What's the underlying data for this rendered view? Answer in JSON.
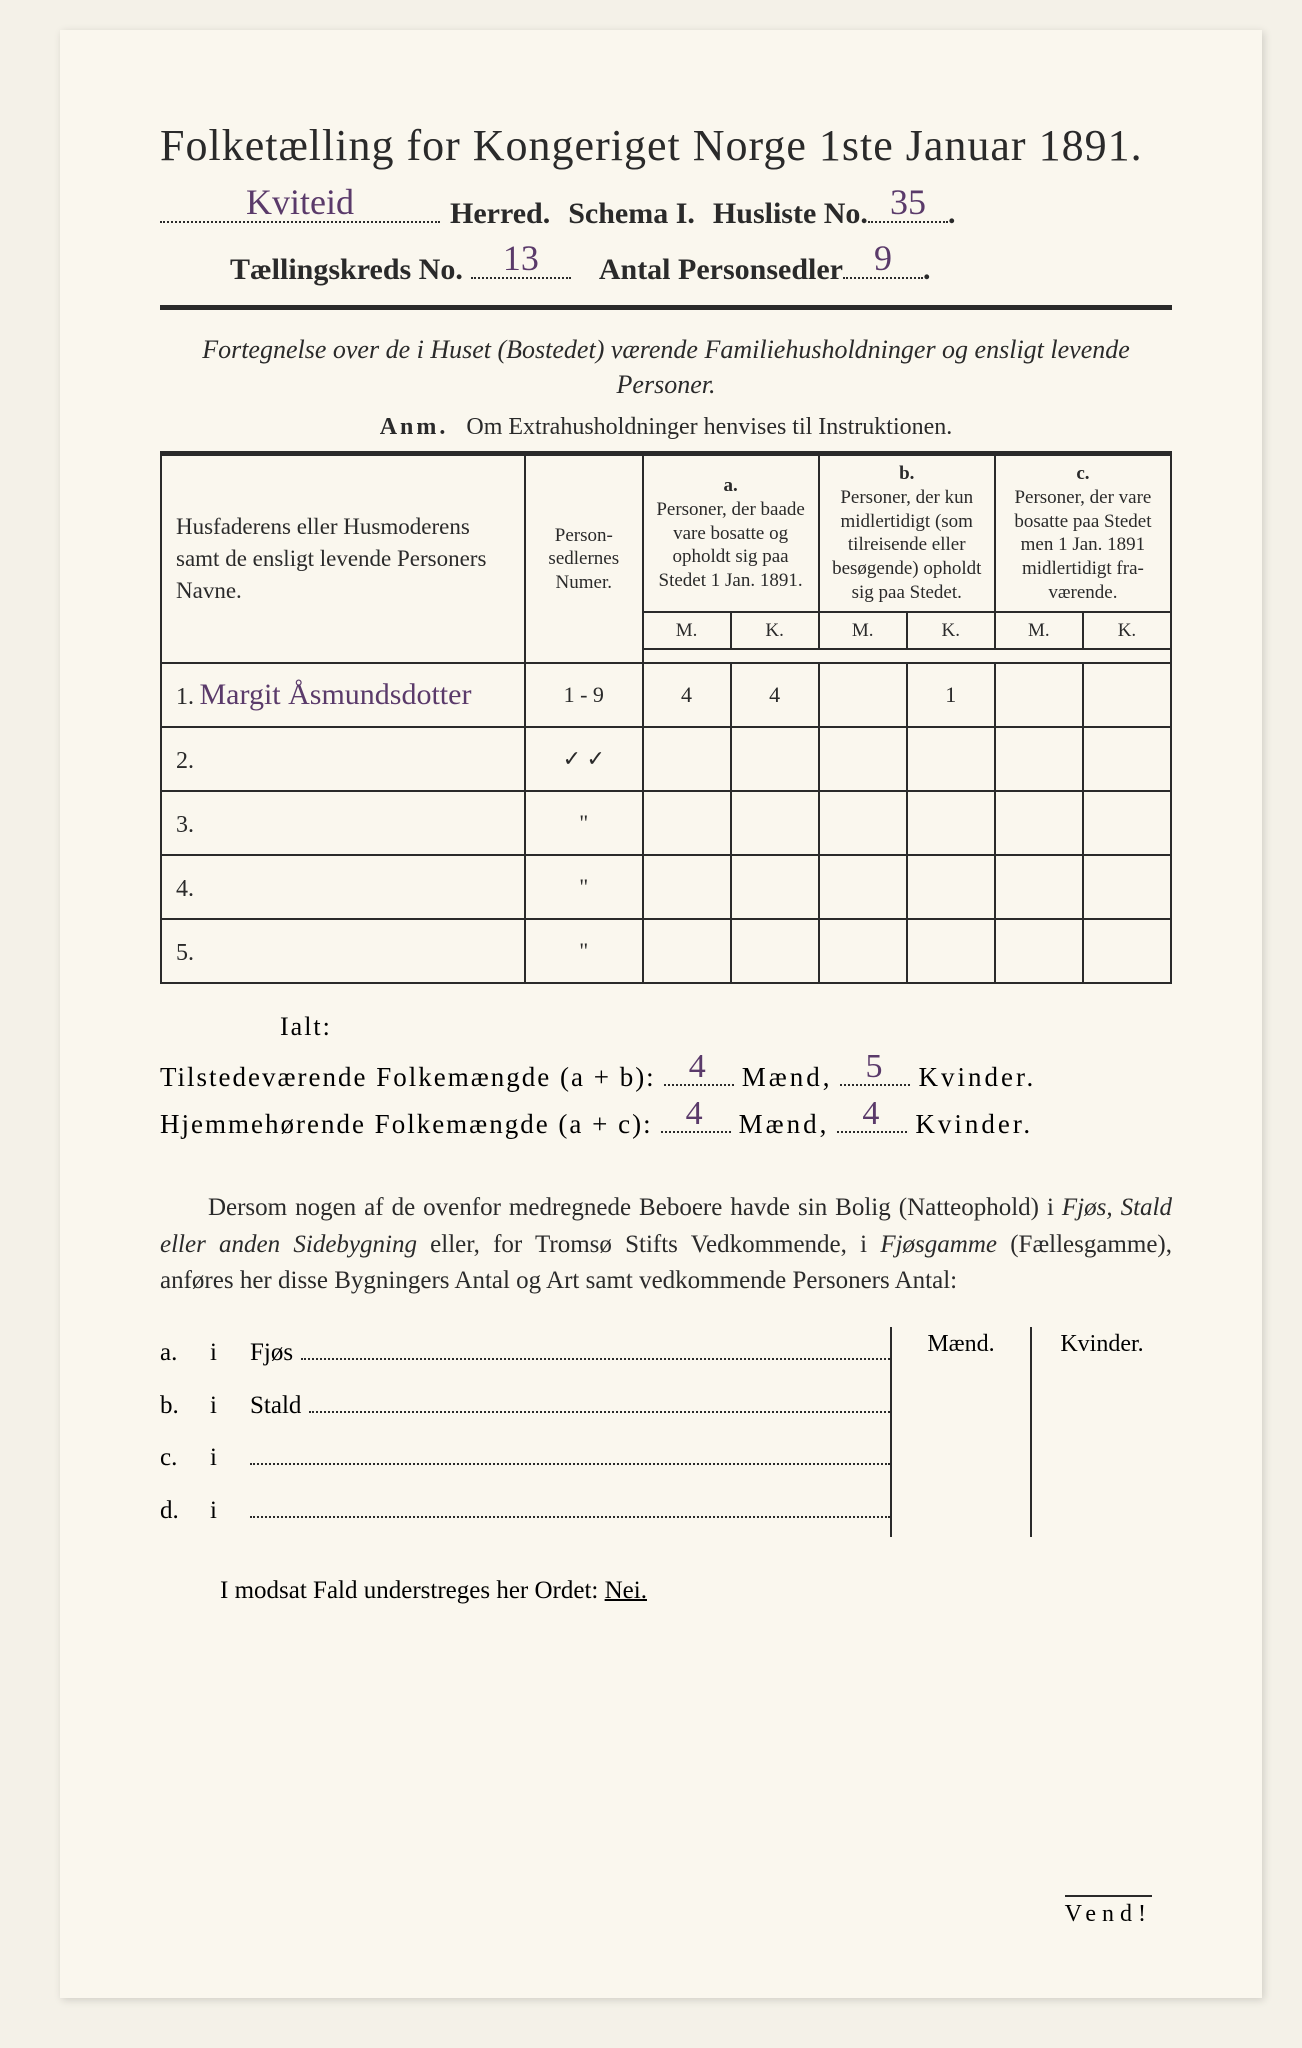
{
  "colors": {
    "paper": "#faf7ee",
    "background": "#f4f1e8",
    "ink": "#2a2a2a",
    "handwriting": "#5a3a6a"
  },
  "typography": {
    "title_fontsize": 44,
    "header_fontsize": 30,
    "body_fontsize": 25,
    "table_header_fontsize": 19,
    "handwriting_fontsize": 36
  },
  "title": "Folketælling for Kongeriget Norge 1ste Januar 1891.",
  "header": {
    "herred_value": "Kviteid",
    "herred_label": "Herred.",
    "schema_label": "Schema I.",
    "husliste_label": "Husliste No.",
    "husliste_value": "35",
    "kreds_label": "Tællingskreds No.",
    "kreds_value": "13",
    "antal_label": "Antal Personsedler",
    "antal_value": "9"
  },
  "intro": "Fortegnelse over de i Huset (Bostedet) værende Familiehusholdninger og ensligt levende Personer.",
  "anm_label": "Anm.",
  "anm_text": "Om Extrahusholdninger henvises til Instruktionen.",
  "table": {
    "col_names": "Husfaderens eller Husmode­rens samt de ensligt levende Personers Navne.",
    "col_num": "Person­sedler­nes Numer.",
    "col_a_tag": "a.",
    "col_a": "Personer, der baade vare bo­satte og opholdt sig paa Stedet 1 Jan. 1891.",
    "col_b_tag": "b.",
    "col_b": "Personer, der kun midler­tidigt (som tilreisende eller besøgende) opholdt sig paa Stedet.",
    "col_c_tag": "c.",
    "col_c": "Personer, der vare bosatte paa Stedet men 1 Jan. 1891 midler­tidigt fra­værende.",
    "M": "M.",
    "K": "K.",
    "rows": [
      {
        "n": "1.",
        "name": "Margit Åsmundsdotter",
        "num": "1 - 9",
        "aM": "4",
        "aK": "4",
        "bM": "",
        "bK": "1",
        "cM": "",
        "cK": ""
      },
      {
        "n": "2.",
        "name": "",
        "num": "✓   ✓",
        "aM": "",
        "aK": "",
        "bM": "",
        "bK": "",
        "cM": "",
        "cK": ""
      },
      {
        "n": "3.",
        "name": "",
        "num": "\"",
        "aM": "",
        "aK": "",
        "bM": "",
        "bK": "",
        "cM": "",
        "cK": ""
      },
      {
        "n": "4.",
        "name": "",
        "num": "\"",
        "aM": "",
        "aK": "",
        "bM": "",
        "bK": "",
        "cM": "",
        "cK": ""
      },
      {
        "n": "5.",
        "name": "",
        "num": "\"",
        "aM": "",
        "aK": "",
        "bM": "",
        "bK": "",
        "cM": "",
        "cK": ""
      }
    ]
  },
  "ialt": "Ialt:",
  "totals": {
    "line1_label": "Tilstedeværende Folkemængde (a + b):",
    "line1_m": "4",
    "line1_k": "5",
    "line2_label": "Hjemmehørende Folkemængde (a + c):",
    "line2_m": "4",
    "line2_k": "4",
    "maend": "Mænd,",
    "kvinder": "Kvinder."
  },
  "para": "Dersom nogen af de ovenfor medregnede Beboere havde sin Bolig (Natte­ophold) i Fjøs, Stald eller anden Sidebygning eller, for Tromsø Stifts Ved­kommende, i Fjøsgamme (Fællesgamme), anføres her disse Bygningers Antal og Art samt vedkommende Personers Antal:",
  "sidebox": {
    "maend": "Mænd.",
    "kvinder": "Kvinder.",
    "rows": [
      {
        "tag": "a.",
        "i": "i",
        "label": "Fjøs"
      },
      {
        "tag": "b.",
        "i": "i",
        "label": "Stald"
      },
      {
        "tag": "c.",
        "i": "i",
        "label": ""
      },
      {
        "tag": "d.",
        "i": "i",
        "label": ""
      }
    ]
  },
  "nei_line_pre": "I modsat Fald understreges her Ordet: ",
  "nei_word": "Nei.",
  "vend": "Vend!"
}
